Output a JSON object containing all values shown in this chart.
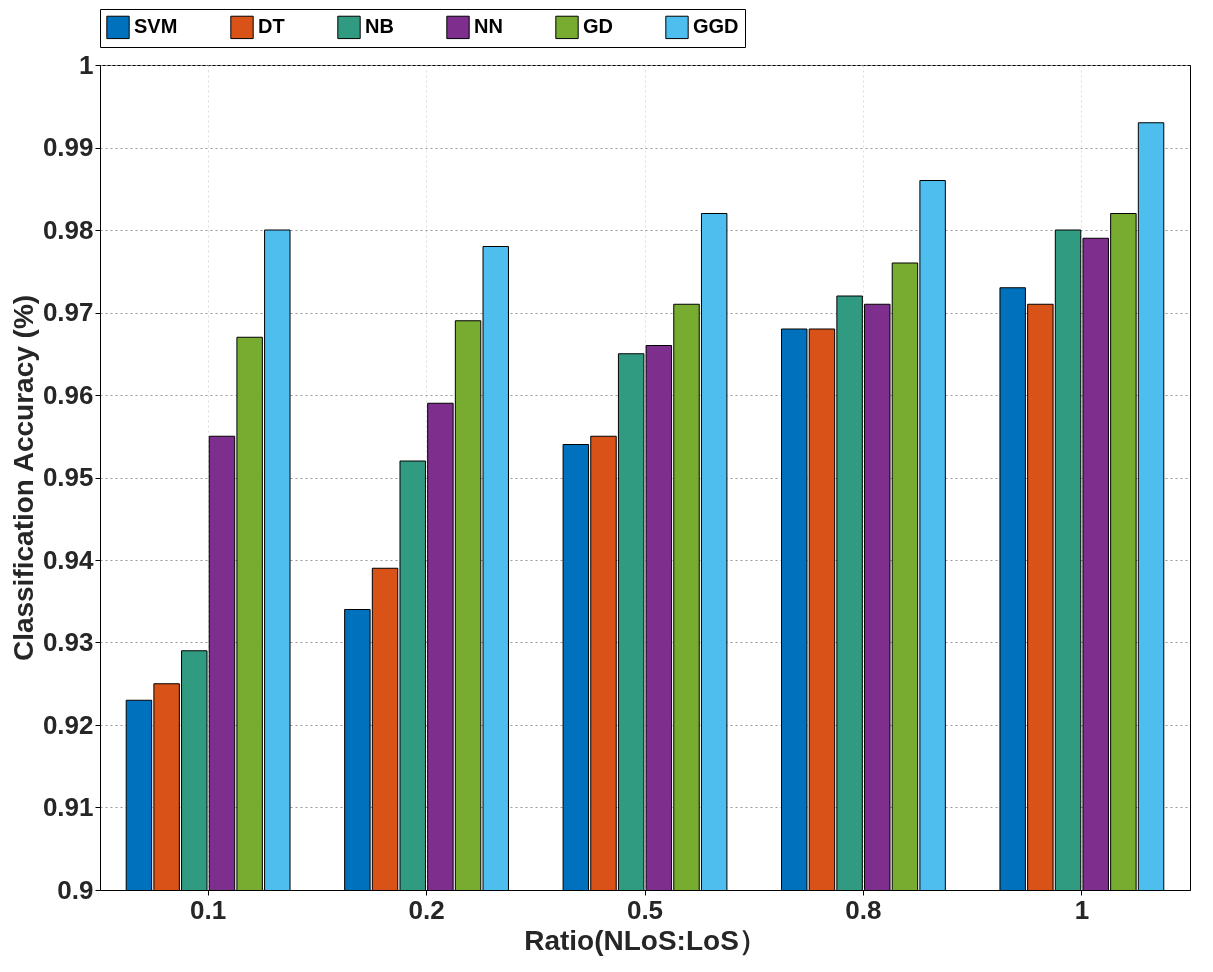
{
  "chart_data": {
    "type": "bar",
    "xlabel": "Ratio(NLoS:LoS）",
    "ylabel": "Classification Accuracy (%)",
    "categories": [
      "0.1",
      "0.2",
      "0.5",
      "0.8",
      "1"
    ],
    "series": [
      {
        "name": "SVM",
        "color": "#0072bd",
        "values": [
          0.923,
          0.934,
          0.954,
          0.968,
          0.973
        ]
      },
      {
        "name": "DT",
        "color": "#d95319",
        "values": [
          0.925,
          0.939,
          0.955,
          0.968,
          0.971
        ]
      },
      {
        "name": "NB",
        "color": "#319b81",
        "values": [
          0.929,
          0.952,
          0.965,
          0.972,
          0.98
        ]
      },
      {
        "name": "NN",
        "color": "#7e2f8e",
        "values": [
          0.955,
          0.959,
          0.966,
          0.971,
          0.979
        ]
      },
      {
        "name": "GD",
        "color": "#77ac30",
        "values": [
          0.967,
          0.969,
          0.971,
          0.976,
          0.982
        ]
      },
      {
        "name": "GGD",
        "color": "#4dbeee",
        "values": [
          0.98,
          0.978,
          0.982,
          0.986,
          0.993
        ]
      }
    ],
    "ylim": [
      0.9,
      1
    ],
    "yticks": [
      0.9,
      0.91,
      0.92,
      0.93,
      0.94,
      0.95,
      0.96,
      0.97,
      0.98,
      0.99,
      1
    ],
    "grid": true,
    "legend": "top"
  }
}
